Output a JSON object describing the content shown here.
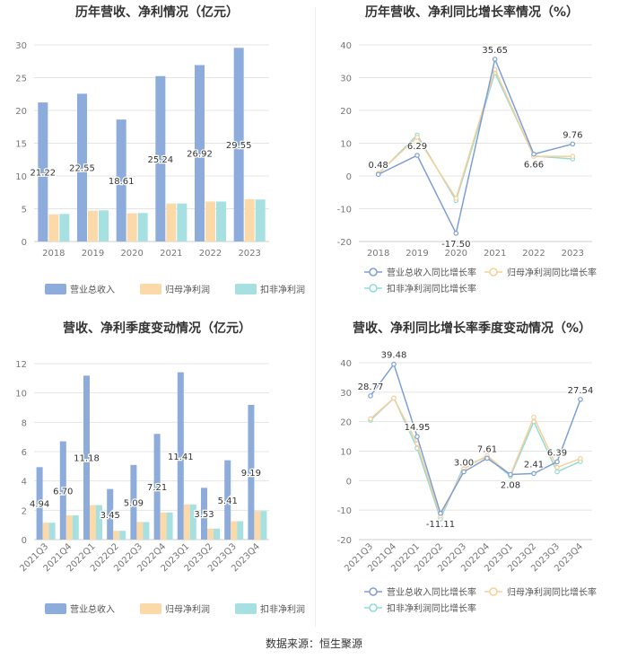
{
  "colors": {
    "revenue": "#8dacdb",
    "netprofit": "#fbd9a8",
    "deducted": "#a6e0e0",
    "revenue_line": "#7e9fd6",
    "netprofit_line": "#f9cf97",
    "deducted_line": "#93dcd8",
    "axis_text": "#777777",
    "grid": "#e4e4e4",
    "title": "#333333"
  },
  "footer": {
    "source": "数据来源：恒生聚源"
  },
  "chart_data": [
    {
      "id": "annual-bar",
      "type": "bar",
      "title": "历年营收、净利情况（亿元）",
      "categories": [
        "2018",
        "2019",
        "2020",
        "2021",
        "2022",
        "2023"
      ],
      "ylim": [
        0,
        30
      ],
      "yticks": [
        0,
        5,
        10,
        15,
        20,
        25,
        30
      ],
      "grid": true,
      "legend_position": "bottom",
      "series": [
        {
          "name": "营业总收入",
          "values": [
            21.22,
            22.55,
            18.61,
            25.24,
            26.92,
            29.55
          ],
          "labels": [
            "21.22",
            "22.55",
            "18.61",
            "25.24",
            "26.92",
            "29.55"
          ]
        },
        {
          "name": "归母净利润",
          "values": [
            4.15,
            4.7,
            4.3,
            5.8,
            6.1,
            6.45
          ]
        },
        {
          "name": "扣非净利润",
          "values": [
            4.2,
            4.75,
            4.35,
            5.8,
            6.1,
            6.4
          ]
        }
      ]
    },
    {
      "id": "annual-line",
      "type": "line",
      "title": "历年营收、净利同比增长率情况（%）",
      "categories": [
        "2018",
        "2019",
        "2020",
        "2021",
        "2022",
        "2023"
      ],
      "ylim": [
        -20,
        40
      ],
      "yticks": [
        -20,
        -10,
        0,
        10,
        20,
        30,
        40
      ],
      "grid": true,
      "legend_position": "bottom",
      "series": [
        {
          "name": "营业总收入同比增长率",
          "values": [
            0.48,
            6.29,
            -17.5,
            35.65,
            6.66,
            9.76
          ],
          "labels": [
            "0.48",
            "6.29",
            "-17.50",
            "35.65",
            "6.66",
            "9.76"
          ]
        },
        {
          "name": "归母净利润同比增长率",
          "values": [
            0.8,
            11.8,
            -6.8,
            32.5,
            6.0,
            6.0
          ]
        },
        {
          "name": "扣非净利润同比增长率",
          "values": [
            0.6,
            12.5,
            -7.5,
            31.5,
            6.1,
            5.2
          ]
        }
      ]
    },
    {
      "id": "quarter-bar",
      "type": "bar",
      "title": "营收、净利季度变动情况（亿元）",
      "categories": [
        "2021Q3",
        "2021Q4",
        "2022Q1",
        "2022Q2",
        "2022Q3",
        "2022Q4",
        "2023Q1",
        "2023Q2",
        "2023Q3",
        "2023Q4"
      ],
      "ylim": [
        0,
        12
      ],
      "yticks": [
        0,
        2,
        4,
        6,
        8,
        10,
        12
      ],
      "grid": true,
      "legend_position": "bottom",
      "series": [
        {
          "name": "营业总收入",
          "values": [
            4.94,
            6.7,
            11.18,
            3.45,
            5.09,
            7.21,
            11.41,
            3.53,
            5.41,
            9.19
          ],
          "labels": [
            "4.94",
            "6.70",
            "11.18",
            "3.45",
            "5.09",
            "7.21",
            "11.41",
            "3.53",
            "5.41",
            "9.19"
          ]
        },
        {
          "name": "归母净利润",
          "values": [
            1.15,
            1.65,
            2.35,
            0.6,
            1.2,
            1.85,
            2.4,
            0.75,
            1.25,
            1.95
          ]
        },
        {
          "name": "扣非净利润",
          "values": [
            1.15,
            1.65,
            2.35,
            0.6,
            1.2,
            1.85,
            2.4,
            0.75,
            1.25,
            1.95
          ]
        }
      ]
    },
    {
      "id": "quarter-line",
      "type": "line",
      "title": "营收、净利同比增长率季度变动情况（%）",
      "categories": [
        "2021Q3",
        "2021Q4",
        "2022Q1",
        "2022Q2",
        "2022Q3",
        "2022Q4",
        "2023Q1",
        "2023Q2",
        "2023Q3",
        "2023Q4"
      ],
      "ylim": [
        -20,
        40
      ],
      "yticks": [
        -20,
        -10,
        0,
        10,
        20,
        30,
        40
      ],
      "grid": true,
      "legend_position": "bottom",
      "series": [
        {
          "name": "营业总收入同比增长率",
          "values": [
            28.77,
            39.48,
            14.95,
            -11.11,
            3.0,
            7.61,
            2.08,
            2.41,
            6.39,
            27.54
          ],
          "labels": [
            "28.77",
            "39.48",
            "14.95",
            "-11.11",
            "3.00",
            "7.61",
            "2.08",
            "2.41",
            "6.39",
            "27.54"
          ]
        },
        {
          "name": "归母净利润同比增长率",
          "values": [
            21.0,
            28.0,
            12.5,
            -12.0,
            4.0,
            8.5,
            2.0,
            21.5,
            4.5,
            7.5
          ]
        },
        {
          "name": "扣非净利润同比增长率",
          "values": [
            20.5,
            28.0,
            11.0,
            -13.0,
            5.0,
            8.0,
            1.5,
            20.0,
            3.0,
            6.5
          ]
        }
      ]
    }
  ]
}
